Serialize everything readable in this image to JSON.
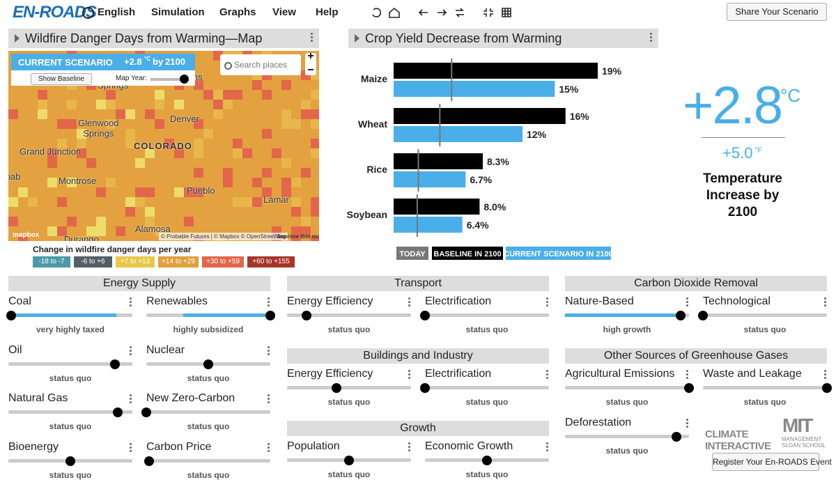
{
  "header": {
    "logo": "EN-ROADS",
    "menus": [
      "English",
      "Simulation",
      "Graphs",
      "View",
      "Help"
    ],
    "share": "Share Your Scenario"
  },
  "map": {
    "title": "Wildfire Danger Days from Warming—Map",
    "scenario_label": "CURRENT SCENARIO",
    "scenario_temp": "+2.8",
    "scenario_unit": "°C",
    "scenario_by": "by",
    "scenario_year": "2100",
    "show_baseline": "Show Baseline",
    "map_year": "Map Year:",
    "search": "Search places",
    "places": [
      "Springs",
      "Glenwood\nSprings",
      "Denver",
      "COLORADO",
      "Grand Junction",
      "Moab",
      "Montrose",
      "Pueblo",
      "Lamar",
      "Alamosa",
      "Durango",
      "ins"
    ],
    "attribution": "© Probable Futures | © Mapbox © OpenStreetMap",
    "improve": "Improve this map",
    "mapbox": "mapbox",
    "legend_title": "Change in wildfire danger days per year",
    "legend": [
      {
        "label": "-18 to -7",
        "color": "#4a9aa8"
      },
      {
        "label": "-6 to +6",
        "color": "#555e66"
      },
      {
        "label": "+7 to +13",
        "color": "#e8c84a"
      },
      {
        "label": "+14 to +29",
        "color": "#e0a03c"
      },
      {
        "label": "+30 to +59",
        "color": "#e2674a"
      },
      {
        "label": "+60 to +155",
        "color": "#a8352a"
      }
    ]
  },
  "chart_data": {
    "type": "bar",
    "title": "Crop Yield Decrease from Warming",
    "categories": [
      "Maize",
      "Wheat",
      "Rice",
      "Soybean"
    ],
    "series": [
      {
        "name": "TODAY",
        "color": "#777777",
        "values": [
          5.4,
          4.3,
          2.3,
          2.2
        ]
      },
      {
        "name": "BASELINE IN 2100",
        "color": "#000000",
        "values": [
          19,
          16,
          8.3,
          8.0
        ],
        "value_labels": [
          "19%",
          "16%",
          "8.3%",
          "8.0%"
        ]
      },
      {
        "name": "CURRENT SCENARIO IN 2100",
        "color": "#4aaee8",
        "values": [
          15,
          12,
          6.7,
          6.4
        ],
        "value_labels": [
          "15%",
          "12%",
          "6.7%",
          "6.4%"
        ]
      }
    ]
  },
  "temperature": {
    "celsius": "+2.8",
    "c_unit": "°C",
    "fahrenheit": "+5.0",
    "f_unit": "°F",
    "caption": "Temperature Increase by 2100"
  },
  "panels": [
    {
      "title": "Energy Supply",
      "sliders": [
        {
          "name": "Coal",
          "status": "very highly taxed"
        },
        {
          "name": "Renewables",
          "status": "highly subsidized"
        },
        {
          "name": "Oil",
          "status": "status quo"
        },
        {
          "name": "Nuclear",
          "status": "status quo"
        },
        {
          "name": "Natural Gas",
          "status": "status quo"
        },
        {
          "name": "New Zero-Carbon",
          "status": "status quo"
        },
        {
          "name": "Bioenergy",
          "status": "status quo"
        },
        {
          "name": "Carbon Price",
          "status": "status quo"
        }
      ]
    },
    {
      "title": "Transport",
      "sliders": [
        {
          "name": "Energy Efficiency",
          "status": "status quo"
        },
        {
          "name": "Electrification",
          "status": "status quo"
        }
      ]
    },
    {
      "title": "Buildings and Industry",
      "sliders": [
        {
          "name": "Energy Efficiency",
          "status": "status quo"
        },
        {
          "name": "Electrification",
          "status": "status quo"
        }
      ]
    },
    {
      "title": "Growth",
      "sliders": [
        {
          "name": "Population",
          "status": "status quo"
        },
        {
          "name": "Economic Growth",
          "status": "status quo"
        }
      ]
    },
    {
      "title": "Carbon Dioxide Removal",
      "sliders": [
        {
          "name": "Nature-Based",
          "status": "high growth"
        },
        {
          "name": "Technological",
          "status": "status quo"
        }
      ]
    },
    {
      "title": "Other Sources of Greenhouse Gases",
      "sliders": [
        {
          "name": "Agricultural Emissions",
          "status": "status quo"
        },
        {
          "name": "Waste and Leakage",
          "status": "status quo"
        },
        {
          "name": "Deforestation",
          "status": "status quo"
        }
      ]
    }
  ],
  "footer": {
    "ci_logo": "CLIMATE INTERACTIVE",
    "mit_logo": "MIT",
    "mit_sub": "MANAGEMENT\nSLOAN SCHOOL",
    "register": "Register Your En-ROADS Event"
  }
}
